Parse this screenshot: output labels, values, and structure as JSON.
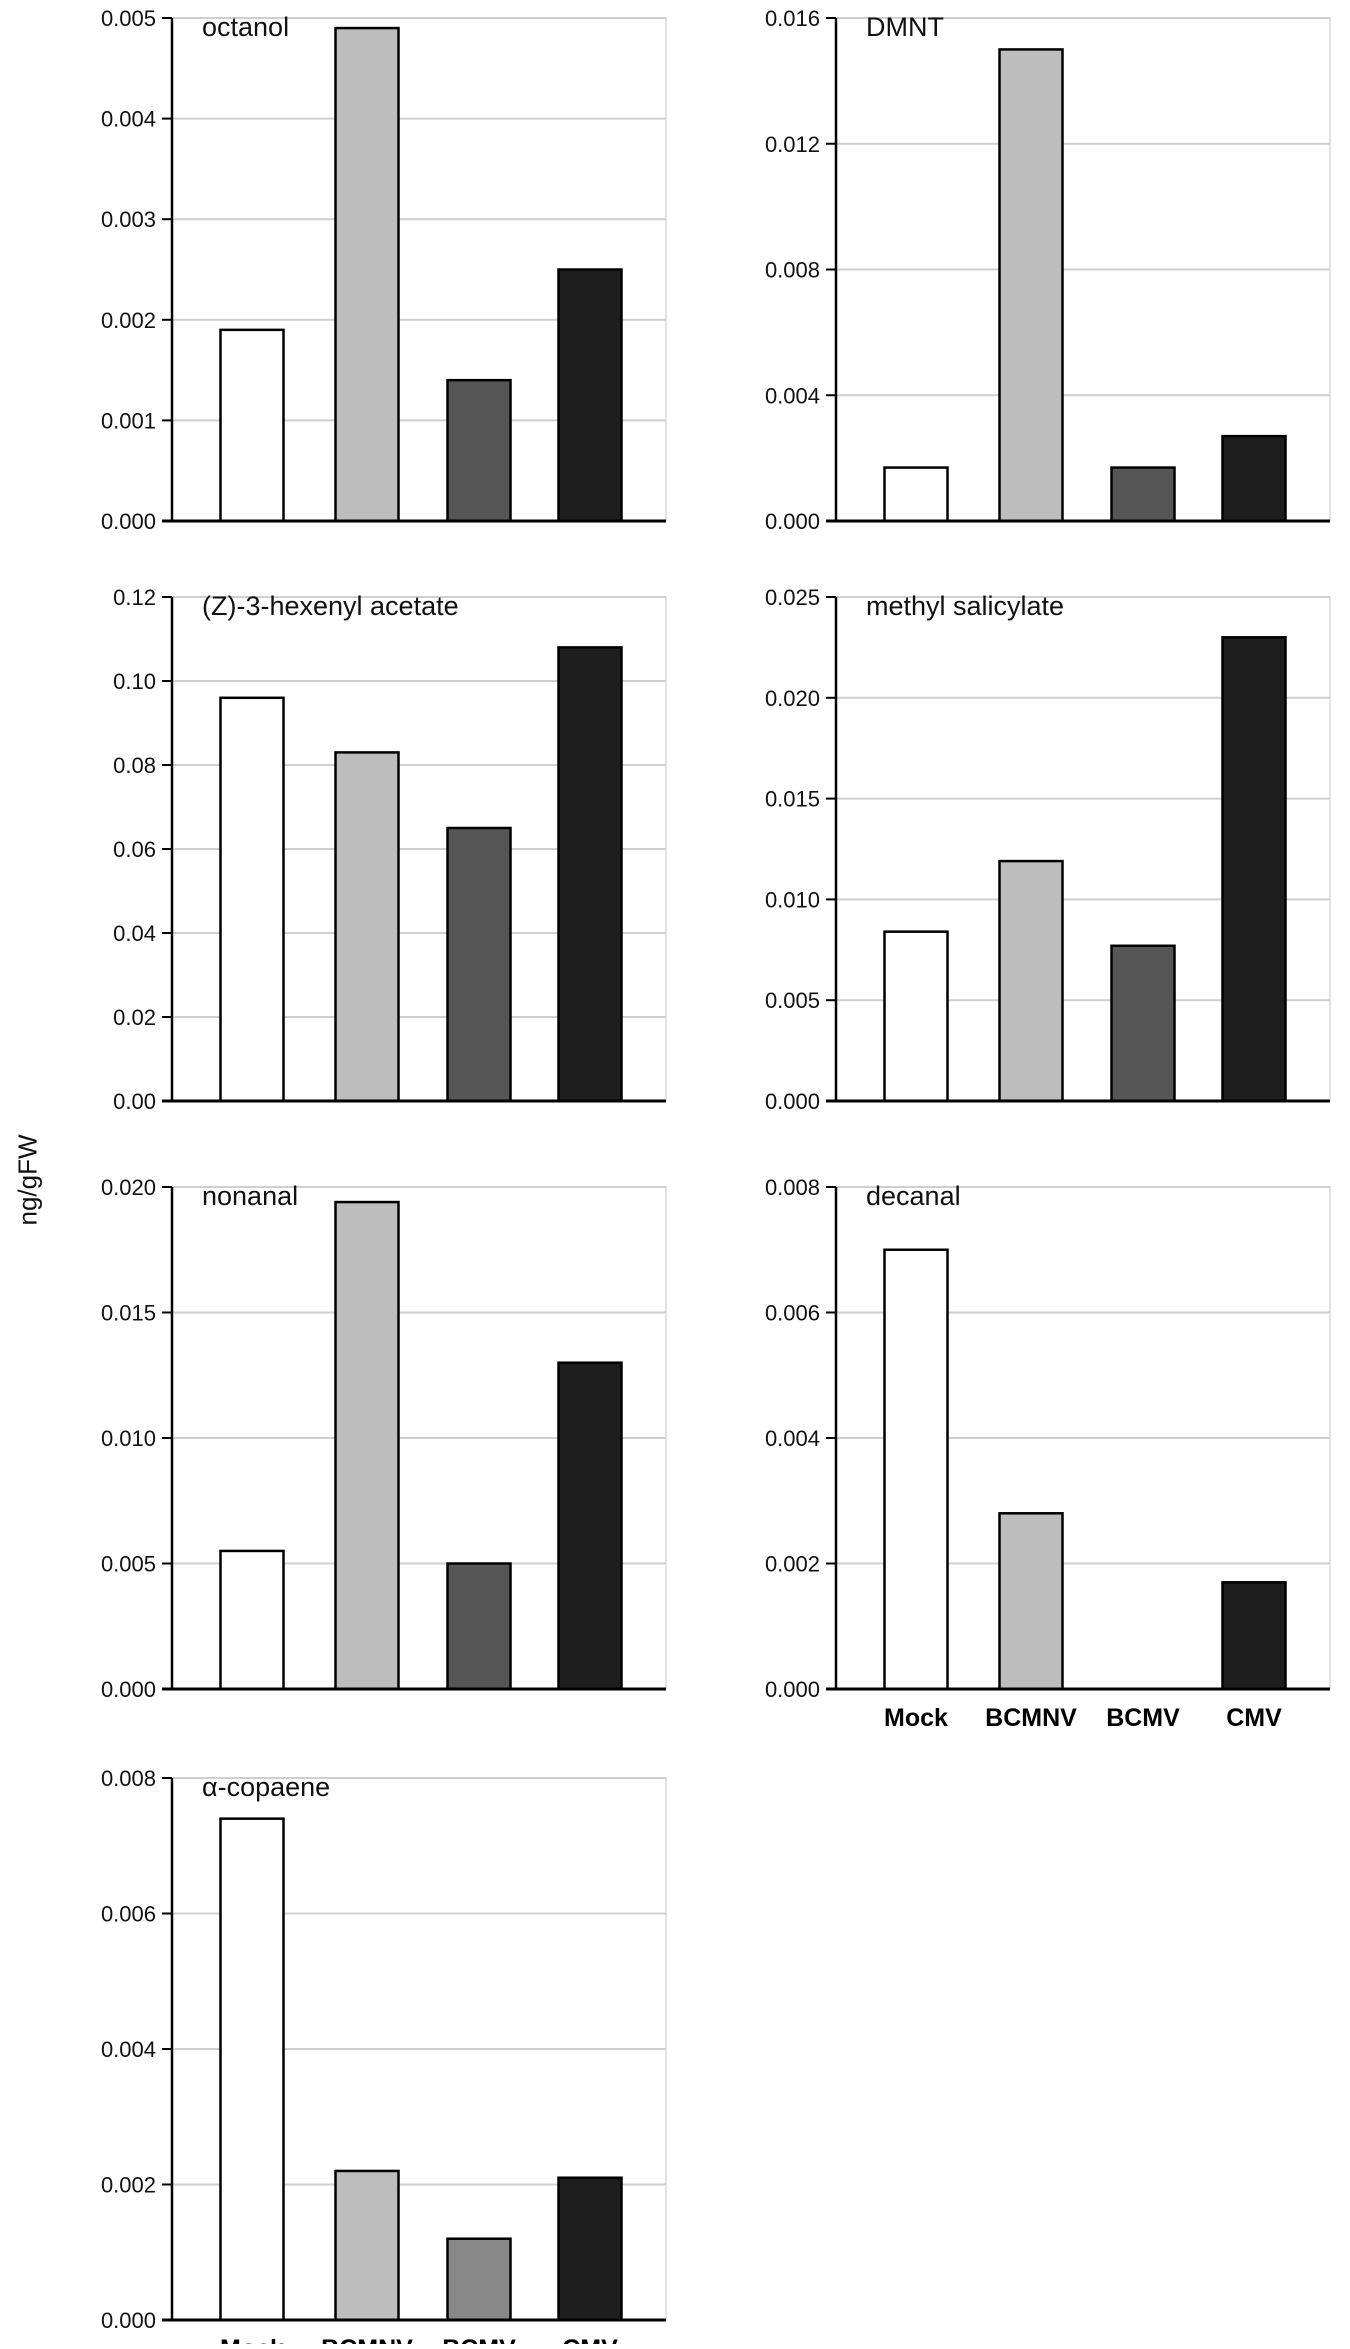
{
  "figure": {
    "ylabel": "ng/gFW",
    "categories": [
      "Mock",
      "BCMNV",
      "BCMV",
      "CMV"
    ]
  },
  "colors": {
    "Mock": "#ffffff",
    "BCMNV": "#bdbdbd",
    "BCMV": "#565656",
    "CMV": "#1e1e1e",
    "BCMV_copaene": "#888888",
    "bar_edge": "#000000",
    "grid": "#cfcfcf"
  },
  "chart_data": [
    {
      "type": "bar",
      "title": "octanol",
      "categories": [
        "Mock",
        "BCMNV",
        "BCMV",
        "CMV"
      ],
      "values": [
        0.0019,
        0.0049,
        0.0014,
        0.0025
      ],
      "ylim": [
        0,
        0.005
      ],
      "yticks": [
        "0.000",
        "0.001",
        "0.002",
        "0.003",
        "0.004",
        "0.005"
      ],
      "show_xlabels": false
    },
    {
      "type": "bar",
      "title": "DMNT",
      "categories": [
        "Mock",
        "BCMNV",
        "BCMV",
        "CMV"
      ],
      "values": [
        0.0017,
        0.015,
        0.0017,
        0.0027
      ],
      "ylim": [
        0,
        0.016
      ],
      "yticks": [
        "0.000",
        "0.004",
        "0.008",
        "0.012",
        "0.016"
      ],
      "show_xlabels": false
    },
    {
      "type": "bar",
      "title": "(Z)-3-hexenyl acetate",
      "categories": [
        "Mock",
        "BCMNV",
        "BCMV",
        "CMV"
      ],
      "values": [
        0.096,
        0.083,
        0.065,
        0.108
      ],
      "ylim": [
        0,
        0.12
      ],
      "yticks": [
        "0.00",
        "0.02",
        "0.04",
        "0.06",
        "0.08",
        "0.10",
        "0.12"
      ],
      "show_xlabels": false
    },
    {
      "type": "bar",
      "title": "methyl salicylate",
      "categories": [
        "Mock",
        "BCMNV",
        "BCMV",
        "CMV"
      ],
      "values": [
        0.0084,
        0.0119,
        0.0077,
        0.023
      ],
      "ylim": [
        0,
        0.025
      ],
      "yticks": [
        "0.000",
        "0.005",
        "0.010",
        "0.015",
        "0.020",
        "0.025"
      ],
      "show_xlabels": false
    },
    {
      "type": "bar",
      "title": "nonanal",
      "categories": [
        "Mock",
        "BCMNV",
        "BCMV",
        "CMV"
      ],
      "values": [
        0.0055,
        0.0194,
        0.005,
        0.013
      ],
      "ylim": [
        0,
        0.02
      ],
      "yticks": [
        "0.000",
        "0.005",
        "0.010",
        "0.015",
        "0.020"
      ],
      "show_xlabels": false
    },
    {
      "type": "bar",
      "title": "decanal",
      "categories": [
        "Mock",
        "BCMNV",
        "BCMV",
        "CMV"
      ],
      "values": [
        0.007,
        0.0028,
        0,
        0.0017
      ],
      "ylim": [
        0,
        0.008
      ],
      "yticks": [
        "0.000",
        "0.002",
        "0.004",
        "0.006",
        "0.008"
      ],
      "show_xlabels": true
    },
    {
      "type": "bar",
      "title": "α-copaene",
      "categories": [
        "Mock",
        "BCMNV",
        "BCMV",
        "CMV"
      ],
      "values": [
        0.0074,
        0.0022,
        0.0012,
        0.0021
      ],
      "ylim": [
        0,
        0.008
      ],
      "yticks": [
        "0.000",
        "0.002",
        "0.004",
        "0.006",
        "0.008"
      ],
      "show_xlabels": true
    }
  ]
}
